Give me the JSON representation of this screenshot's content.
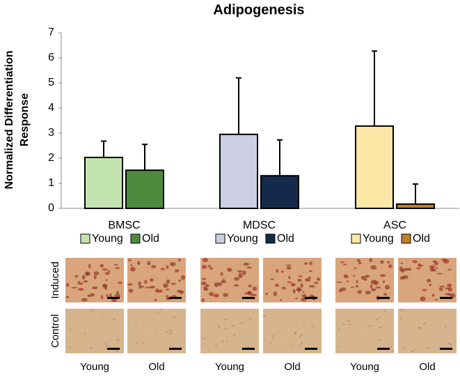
{
  "chart_data": {
    "type": "grouped-bar-error",
    "title": "Adipogenesis",
    "ylabel": [
      "Normalized Differentiation",
      "Response"
    ],
    "ylim": [
      0,
      7
    ],
    "yticks": [
      0,
      1,
      2,
      3,
      4,
      5,
      6,
      7
    ],
    "groups": [
      {
        "name": "BMSC",
        "series": [
          {
            "name": "Young",
            "color": "#c3e4b0",
            "value": 2.03,
            "error": 0.65
          },
          {
            "name": "Old",
            "color": "#4e8a3e",
            "value": 1.52,
            "error": 1.03
          }
        ]
      },
      {
        "name": "MDSC",
        "series": [
          {
            "name": "Young",
            "color": "#cdd0e3",
            "value": 2.95,
            "error": 2.25
          },
          {
            "name": "Old",
            "color": "#142a4a",
            "value": 1.3,
            "error": 1.43
          }
        ]
      },
      {
        "name": "ASC",
        "series": [
          {
            "name": "Young",
            "color": "#fde7a6",
            "value": 3.28,
            "error": 2.99
          },
          {
            "name": "Old",
            "color": "#c27d2a",
            "value": 0.17,
            "error": 0.8
          }
        ]
      }
    ]
  },
  "image_panel": {
    "row_labels": [
      "Induced",
      "Control"
    ],
    "column_labels": [
      "Young",
      "Old",
      "Young",
      "Old",
      "Young",
      "Old"
    ]
  }
}
